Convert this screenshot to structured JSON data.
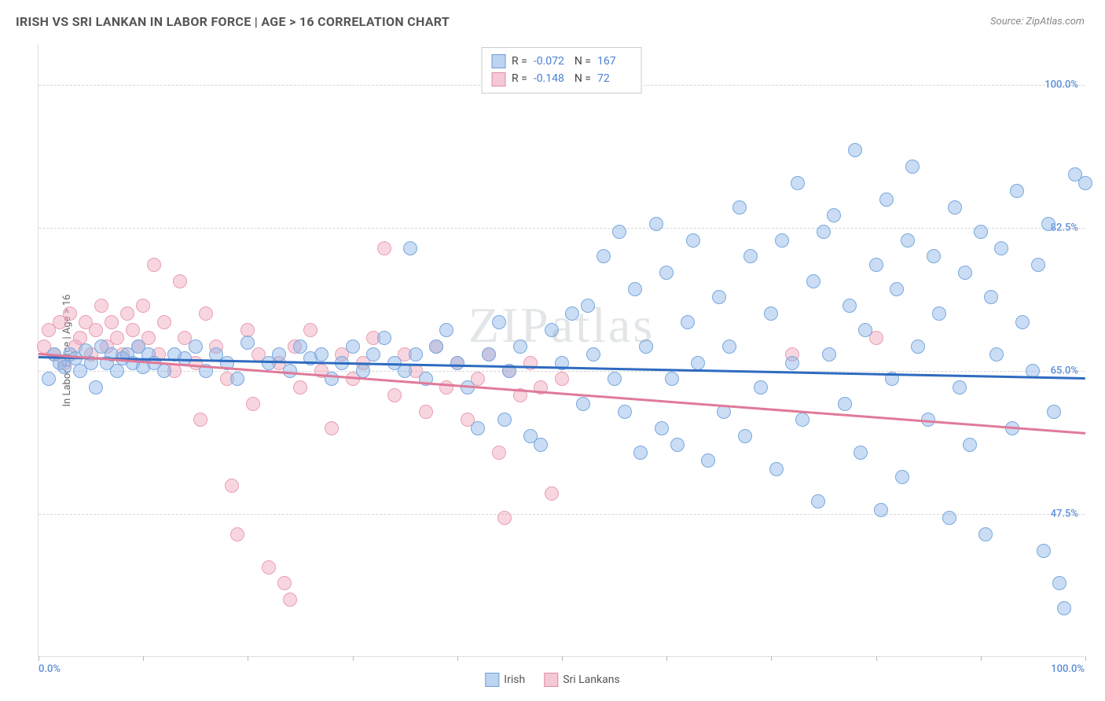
{
  "title": "IRISH VS SRI LANKAN IN LABOR FORCE | AGE > 16 CORRELATION CHART",
  "source": "Source: ZipAtlas.com",
  "watermark": "ZIPatlas",
  "y_axis": {
    "label": "In Labor Force | Age > 16",
    "min": 30.0,
    "max": 105.0,
    "ticks": [
      47.5,
      65.0,
      82.5,
      100.0
    ],
    "tick_labels": [
      "47.5%",
      "65.0%",
      "82.5%",
      "100.0%"
    ],
    "label_color": "#5b8dd6",
    "label_fontsize": 13
  },
  "x_axis": {
    "min": 0.0,
    "max": 100.0,
    "ticks": [
      0,
      10,
      20,
      30,
      40,
      50,
      60,
      70,
      80,
      90,
      100
    ],
    "end_labels": {
      "left": "0.0%",
      "right": "100.0%"
    },
    "label_color": "#5b8dd6"
  },
  "series": [
    {
      "name": "Irish",
      "color_fill": "rgba(138,180,230,0.45)",
      "color_stroke": "#7aa8de",
      "swatch_fill": "#bdd4f0",
      "swatch_border": "#6f9cd4",
      "trend_color": "#2e6bc0",
      "R": "-0.072",
      "N": "167",
      "trend": {
        "y_start": 66.8,
        "y_end": 64.2
      },
      "marker_radius": 9,
      "points": [
        [
          1,
          64
        ],
        [
          1.5,
          67
        ],
        [
          2,
          66
        ],
        [
          2.5,
          65.5
        ],
        [
          3,
          67
        ],
        [
          3.5,
          66.5
        ],
        [
          4,
          65
        ],
        [
          4.5,
          67.5
        ],
        [
          5,
          66
        ],
        [
          5.5,
          63
        ],
        [
          6,
          68
        ],
        [
          6.5,
          66
        ],
        [
          7,
          67
        ],
        [
          7.5,
          65
        ],
        [
          8,
          66.5
        ],
        [
          8.5,
          67
        ],
        [
          9,
          66
        ],
        [
          9.5,
          68
        ],
        [
          10,
          65.5
        ],
        [
          10.5,
          67
        ],
        [
          11,
          66
        ],
        [
          12,
          65
        ],
        [
          13,
          67
        ],
        [
          14,
          66.5
        ],
        [
          15,
          68
        ],
        [
          16,
          65
        ],
        [
          17,
          67
        ],
        [
          18,
          66
        ],
        [
          19,
          64
        ],
        [
          20,
          68.5
        ],
        [
          22,
          66
        ],
        [
          23,
          67
        ],
        [
          24,
          65
        ],
        [
          25,
          68
        ],
        [
          26,
          66.5
        ],
        [
          27,
          67
        ],
        [
          28,
          64
        ],
        [
          29,
          66
        ],
        [
          30,
          68
        ],
        [
          31,
          65
        ],
        [
          32,
          67
        ],
        [
          33,
          69
        ],
        [
          34,
          66
        ],
        [
          35,
          65
        ],
        [
          35.5,
          80
        ],
        [
          36,
          67
        ],
        [
          37,
          64
        ],
        [
          38,
          68
        ],
        [
          39,
          70
        ],
        [
          40,
          66
        ],
        [
          41,
          63
        ],
        [
          42,
          58
        ],
        [
          43,
          67
        ],
        [
          44,
          71
        ],
        [
          44.5,
          59
        ],
        [
          45,
          65
        ],
        [
          46,
          68
        ],
        [
          47,
          57
        ],
        [
          48,
          56
        ],
        [
          49,
          70
        ],
        [
          50,
          66
        ],
        [
          51,
          72
        ],
        [
          52,
          61
        ],
        [
          52.5,
          73
        ],
        [
          53,
          67
        ],
        [
          54,
          79
        ],
        [
          55,
          64
        ],
        [
          55.5,
          82
        ],
        [
          56,
          60
        ],
        [
          57,
          75
        ],
        [
          57.5,
          55
        ],
        [
          58,
          68
        ],
        [
          59,
          83
        ],
        [
          59.5,
          58
        ],
        [
          60,
          77
        ],
        [
          60.5,
          64
        ],
        [
          61,
          56
        ],
        [
          62,
          71
        ],
        [
          62.5,
          81
        ],
        [
          63,
          66
        ],
        [
          64,
          54
        ],
        [
          65,
          74
        ],
        [
          65.5,
          60
        ],
        [
          66,
          68
        ],
        [
          67,
          85
        ],
        [
          67.5,
          57
        ],
        [
          68,
          79
        ],
        [
          69,
          63
        ],
        [
          70,
          72
        ],
        [
          70.5,
          53
        ],
        [
          71,
          81
        ],
        [
          72,
          66
        ],
        [
          72.5,
          88
        ],
        [
          73,
          59
        ],
        [
          74,
          76
        ],
        [
          74.5,
          49
        ],
        [
          75,
          82
        ],
        [
          75.5,
          67
        ],
        [
          76,
          84
        ],
        [
          77,
          61
        ],
        [
          77.5,
          73
        ],
        [
          78,
          92
        ],
        [
          78.5,
          55
        ],
        [
          79,
          70
        ],
        [
          80,
          78
        ],
        [
          80.5,
          48
        ],
        [
          81,
          86
        ],
        [
          81.5,
          64
        ],
        [
          82,
          75
        ],
        [
          82.5,
          52
        ],
        [
          83,
          81
        ],
        [
          83.5,
          90
        ],
        [
          84,
          68
        ],
        [
          85,
          59
        ],
        [
          85.5,
          79
        ],
        [
          86,
          72
        ],
        [
          87,
          47
        ],
        [
          87.5,
          85
        ],
        [
          88,
          63
        ],
        [
          88.5,
          77
        ],
        [
          89,
          56
        ],
        [
          90,
          82
        ],
        [
          90.5,
          45
        ],
        [
          91,
          74
        ],
        [
          91.5,
          67
        ],
        [
          92,
          80
        ],
        [
          93,
          58
        ],
        [
          93.5,
          87
        ],
        [
          94,
          71
        ],
        [
          95,
          65
        ],
        [
          95.5,
          78
        ],
        [
          96,
          43
        ],
        [
          96.5,
          83
        ],
        [
          97,
          60
        ],
        [
          97.5,
          39
        ],
        [
          98,
          36
        ],
        [
          99,
          89
        ],
        [
          100,
          88
        ]
      ]
    },
    {
      "name": "Sri Lankans",
      "color_fill": "rgba(240,165,185,0.45)",
      "color_stroke": "#e89fb5",
      "swatch_fill": "#f4c9d5",
      "swatch_border": "#e08aa5",
      "trend_color": "#e07a9a",
      "R": "-0.148",
      "N": "72",
      "trend": {
        "y_start": 67.2,
        "y_end": 57.5
      },
      "marker_radius": 9,
      "points": [
        [
          0.5,
          68
        ],
        [
          1,
          70
        ],
        [
          1.5,
          67
        ],
        [
          2,
          71
        ],
        [
          2.5,
          66
        ],
        [
          3,
          72
        ],
        [
          3.5,
          68
        ],
        [
          4,
          69
        ],
        [
          4.5,
          71
        ],
        [
          5,
          67
        ],
        [
          5.5,
          70
        ],
        [
          6,
          73
        ],
        [
          6.5,
          68
        ],
        [
          7,
          71
        ],
        [
          7.5,
          69
        ],
        [
          8,
          67
        ],
        [
          8.5,
          72
        ],
        [
          9,
          70
        ],
        [
          9.5,
          68
        ],
        [
          10,
          73
        ],
        [
          10.5,
          69
        ],
        [
          11,
          78
        ],
        [
          11.5,
          67
        ],
        [
          12,
          71
        ],
        [
          13,
          65
        ],
        [
          13.5,
          76
        ],
        [
          14,
          69
        ],
        [
          15,
          66
        ],
        [
          15.5,
          59
        ],
        [
          16,
          72
        ],
        [
          17,
          68
        ],
        [
          18,
          64
        ],
        [
          18.5,
          51
        ],
        [
          19,
          45
        ],
        [
          20,
          70
        ],
        [
          20.5,
          61
        ],
        [
          21,
          67
        ],
        [
          22,
          41
        ],
        [
          23,
          66
        ],
        [
          23.5,
          39
        ],
        [
          24,
          37
        ],
        [
          24.5,
          68
        ],
        [
          25,
          63
        ],
        [
          26,
          70
        ],
        [
          27,
          65
        ],
        [
          28,
          58
        ],
        [
          29,
          67
        ],
        [
          30,
          64
        ],
        [
          31,
          66
        ],
        [
          32,
          69
        ],
        [
          33,
          80
        ],
        [
          34,
          62
        ],
        [
          35,
          67
        ],
        [
          36,
          65
        ],
        [
          37,
          60
        ],
        [
          38,
          68
        ],
        [
          39,
          63
        ],
        [
          40,
          66
        ],
        [
          41,
          59
        ],
        [
          42,
          64
        ],
        [
          43,
          67
        ],
        [
          44,
          55
        ],
        [
          44.5,
          47
        ],
        [
          45,
          65
        ],
        [
          46,
          62
        ],
        [
          47,
          66
        ],
        [
          48,
          63
        ],
        [
          49,
          50
        ],
        [
          50,
          64
        ],
        [
          72,
          67
        ],
        [
          80,
          69
        ]
      ]
    }
  ],
  "legend_box": {
    "rows": [
      {
        "swatch": 0,
        "R_label": "R =",
        "N_label": "N ="
      },
      {
        "swatch": 1,
        "R_label": "R =",
        "N_label": "N ="
      }
    ]
  },
  "bottom_legend": {
    "items": [
      {
        "swatch": 0,
        "label": "Irish"
      },
      {
        "swatch": 1,
        "label": "Sri Lankans"
      }
    ]
  },
  "colors": {
    "grid": "#d8d8d8",
    "axis": "#e0e0e0",
    "title": "#555555",
    "background": "#ffffff"
  }
}
